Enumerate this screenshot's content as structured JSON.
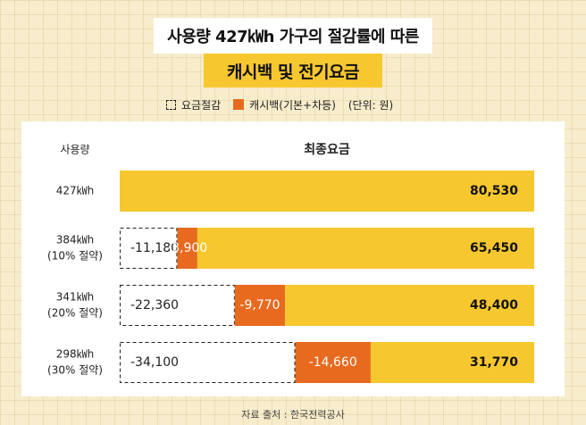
{
  "title": {
    "line1": "사용량 427㎾h 가구의 절감률에 따른",
    "line2": "캐시백 및 전기요금"
  },
  "legend": {
    "saving": "요금절감",
    "cashback": "캐시백(기본+차등)",
    "unit": "(단위: 원)"
  },
  "colors": {
    "final_bill": "#f7c72f",
    "cashback": "#e86a1f",
    "saving_border": "#222222",
    "background": "#f7eccb"
  },
  "source": "자료 출처 : 한국전력공사",
  "chart_data": {
    "type": "bar",
    "orientation": "horizontal",
    "stacked": true,
    "row_header": "사용량",
    "column_header": "최종요금",
    "categories": [
      [
        "427㎾h"
      ],
      [
        "384㎾h",
        "(10% 절약)"
      ],
      [
        "341㎾h",
        "(20% 절약)"
      ],
      [
        "298㎾h",
        "(30% 절약)"
      ]
    ],
    "series": [
      {
        "name": "요금절감",
        "values": [
          0,
          -11180,
          -22360,
          -34100
        ],
        "labels": [
          "",
          "-11,180",
          "-22,360",
          "-34,100"
        ]
      },
      {
        "name": "캐시백(기본+차등)",
        "values": [
          0,
          -3900,
          -9770,
          -14660
        ],
        "labels": [
          "",
          "-3,900",
          "-9,770",
          "-14,660"
        ]
      },
      {
        "name": "최종요금",
        "values": [
          80530,
          65450,
          48400,
          31770
        ],
        "labels": [
          "80,530",
          "65,450",
          "48,400",
          "31,770"
        ]
      }
    ],
    "total": 80530
  }
}
